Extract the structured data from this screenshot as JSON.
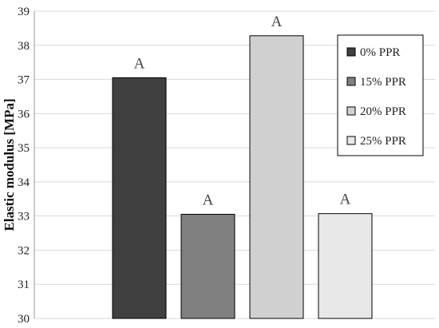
{
  "chart_data": {
    "type": "bar",
    "categories": [
      "0% PPR",
      "15% PPR",
      "20% PPR",
      "25% PPR"
    ],
    "values": [
      37.05,
      33.05,
      38.28,
      33.07
    ],
    "colors": [
      "#404040",
      "#808080",
      "#d0d0d0",
      "#e8e8e8"
    ],
    "bar_labels": [
      "A",
      "A",
      "A",
      "A"
    ],
    "ylabel": "Elastic modulus [MPa]",
    "ylim": [
      30,
      39
    ],
    "yticks": [
      30,
      31,
      32,
      33,
      34,
      35,
      36,
      37,
      38,
      39
    ],
    "grid": true,
    "legend": {
      "placement": "top-right",
      "entries": [
        "0% PPR",
        "15% PPR",
        "20% PPR",
        "25% PPR"
      ]
    }
  }
}
